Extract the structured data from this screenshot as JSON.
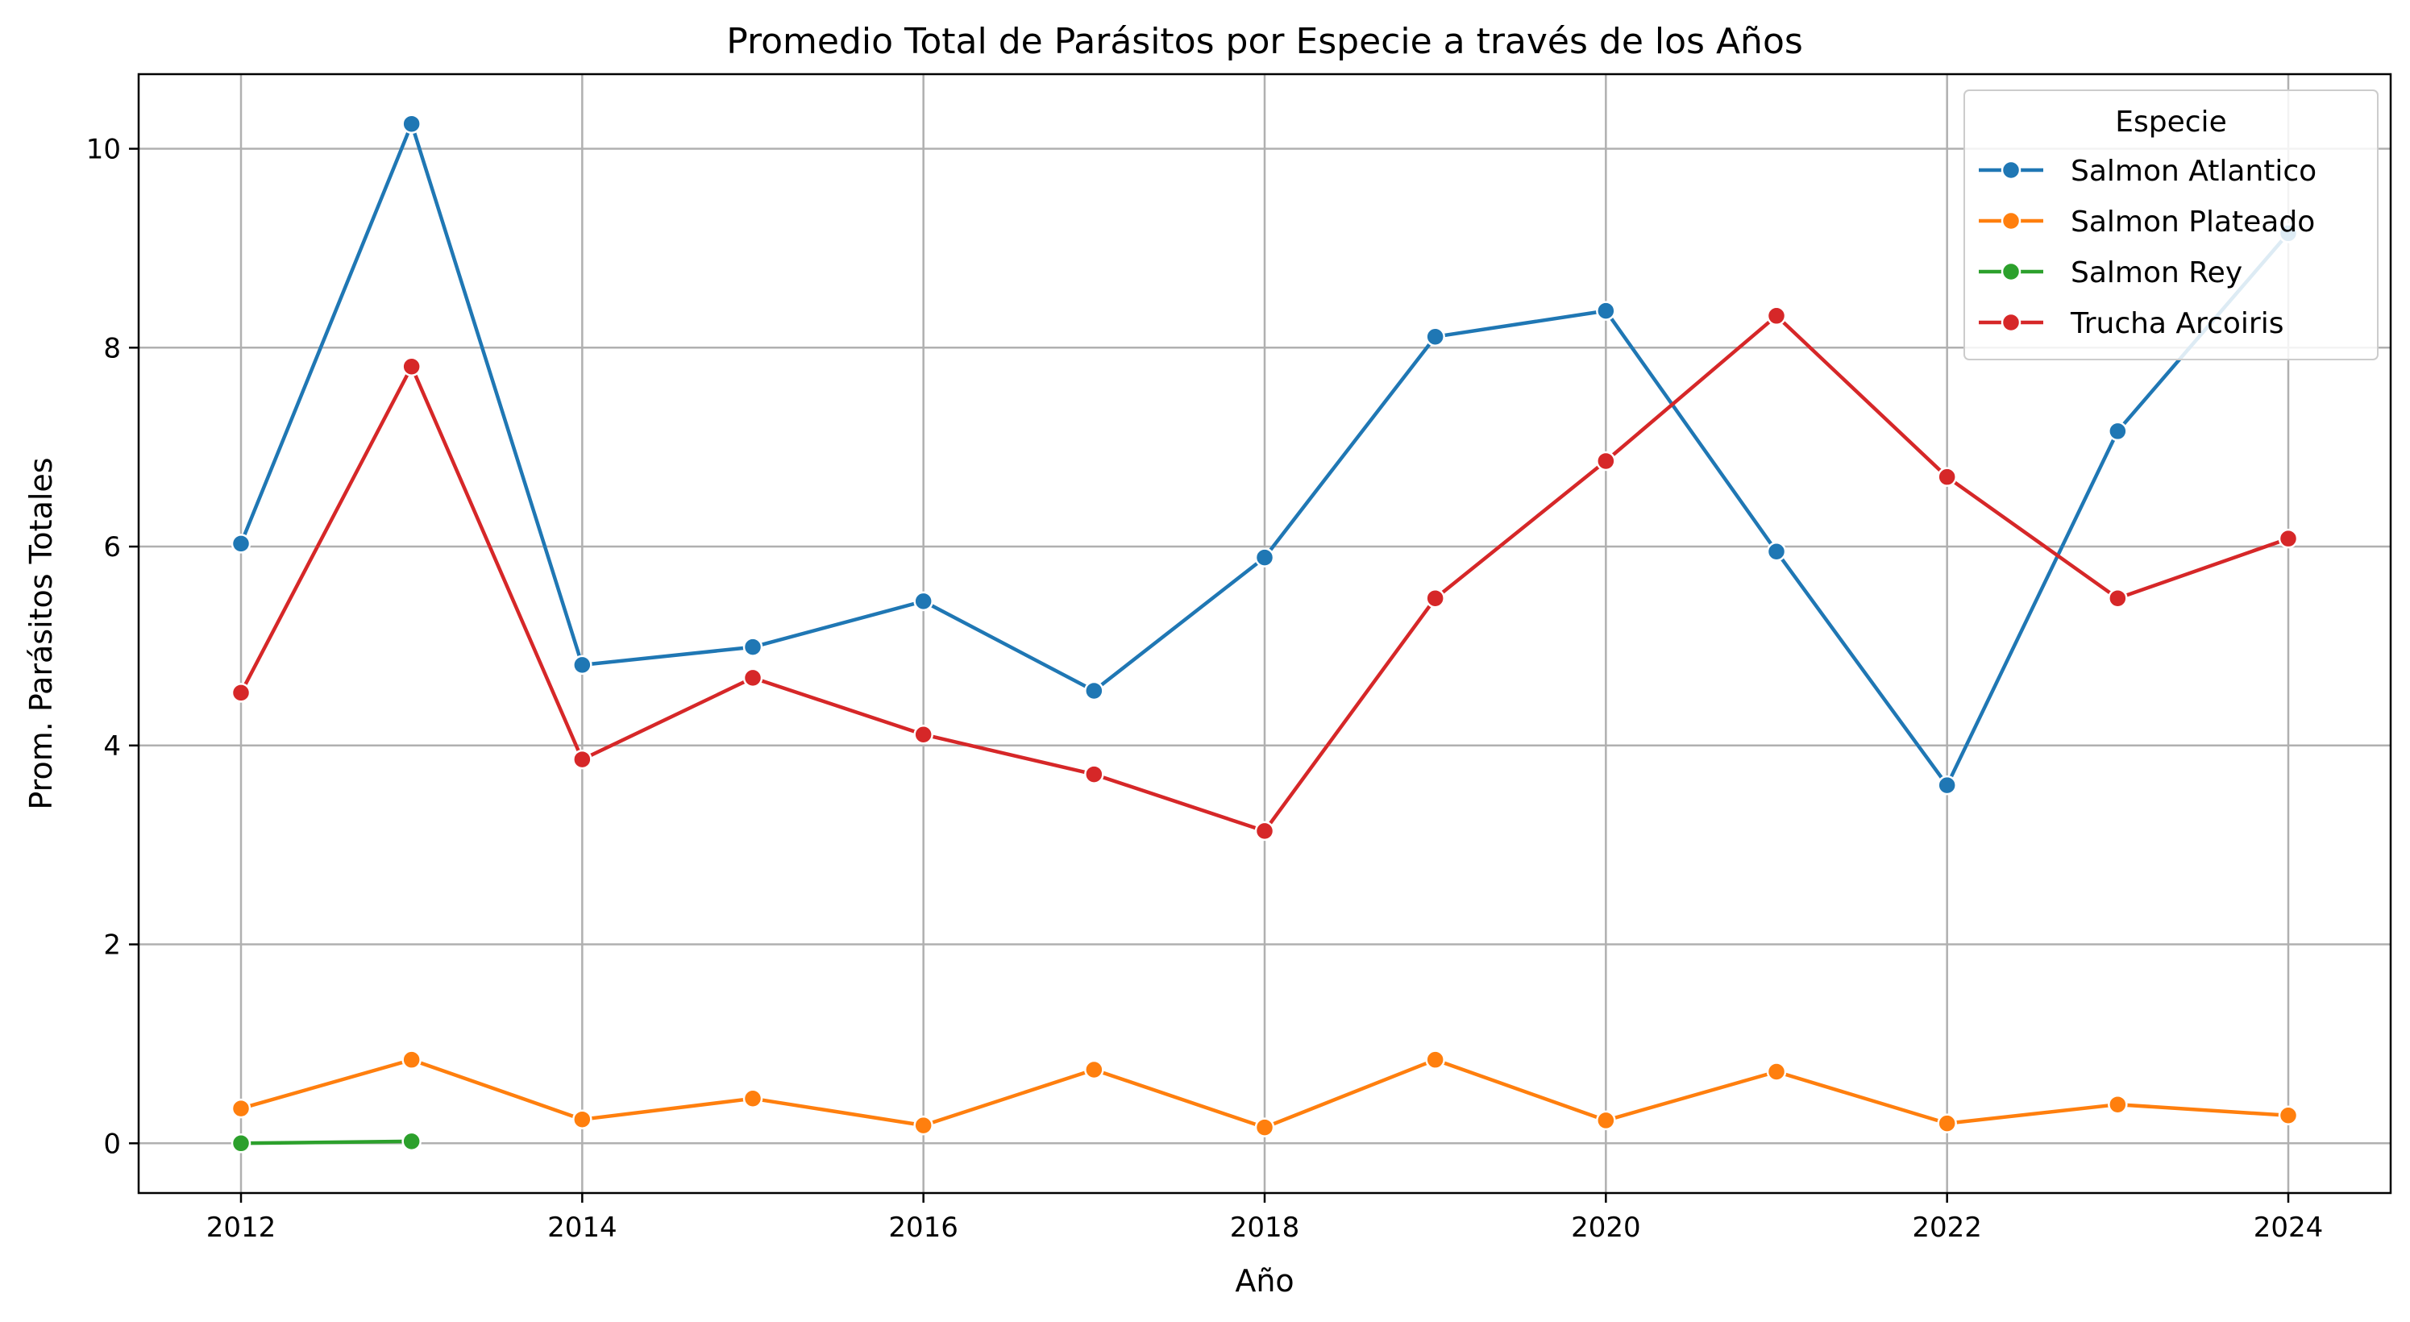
{
  "chart_data": {
    "type": "line",
    "title": "Promedio Total de Parásitos por Especie a través de los Años",
    "xlabel": "Año",
    "ylabel": "Prom. Parásitos Totales",
    "xlim": [
      2011.4,
      2024.6
    ],
    "ylim": [
      -0.5,
      10.75
    ],
    "xticks": [
      2012,
      2014,
      2016,
      2018,
      2020,
      2022,
      2024
    ],
    "yticks": [
      0,
      2,
      4,
      6,
      8,
      10
    ],
    "grid": true,
    "legend": {
      "title": "Especie",
      "position": "top-right"
    },
    "series": [
      {
        "name": "Salmon Atlantico",
        "color": "#1f77b4",
        "x": [
          2012,
          2013,
          2014,
          2015,
          2016,
          2017,
          2018,
          2019,
          2020,
          2021,
          2022,
          2023,
          2024
        ],
        "y": [
          6.03,
          10.25,
          4.81,
          4.99,
          5.45,
          4.55,
          5.89,
          8.11,
          8.37,
          5.95,
          3.6,
          7.16,
          9.15
        ]
      },
      {
        "name": "Salmon Plateado",
        "color": "#ff7f0e",
        "x": [
          2012,
          2013,
          2014,
          2015,
          2016,
          2017,
          2018,
          2019,
          2020,
          2021,
          2022,
          2023,
          2024
        ],
        "y": [
          0.35,
          0.84,
          0.24,
          0.45,
          0.18,
          0.74,
          0.16,
          0.84,
          0.23,
          0.72,
          0.2,
          0.39,
          0.28
        ]
      },
      {
        "name": "Salmon Rey",
        "color": "#2ca02c",
        "x": [
          2012,
          2013
        ],
        "y": [
          0.0,
          0.02
        ]
      },
      {
        "name": "Trucha Arcoiris",
        "color": "#d62728",
        "x": [
          2012,
          2013,
          2014,
          2015,
          2016,
          2017,
          2018,
          2019,
          2020,
          2021,
          2022,
          2023,
          2024
        ],
        "y": [
          4.53,
          7.81,
          3.86,
          4.68,
          4.11,
          3.71,
          3.14,
          5.48,
          6.86,
          8.32,
          6.7,
          5.48,
          6.08
        ]
      }
    ]
  }
}
